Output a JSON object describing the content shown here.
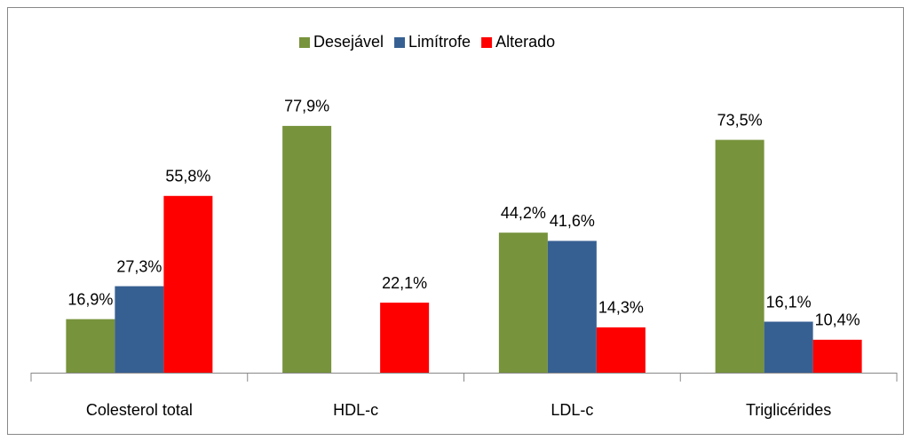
{
  "chart_data": {
    "type": "bar",
    "categories": [
      "Colesterol total",
      "HDL-c",
      "LDL-c",
      "Triglicérides"
    ],
    "series": [
      {
        "name": "Desejável",
        "color": "#77933c",
        "values": [
          16.9,
          77.9,
          44.2,
          73.5
        ],
        "value_labels": [
          "16,9%",
          "77,9%",
          "44,2%",
          "73,5%"
        ]
      },
      {
        "name": "Limítrofe",
        "color": "#376092",
        "values": [
          27.3,
          null,
          41.6,
          16.1
        ],
        "value_labels": [
          "27,3%",
          null,
          "41,6%",
          "16,1%"
        ]
      },
      {
        "name": "Alterado",
        "color": "#ff0000",
        "values": [
          55.8,
          22.1,
          14.3,
          10.4
        ],
        "value_labels": [
          "55,8%",
          "22,1%",
          "14,3%",
          "10,4%"
        ]
      }
    ],
    "legend": "top"
  }
}
